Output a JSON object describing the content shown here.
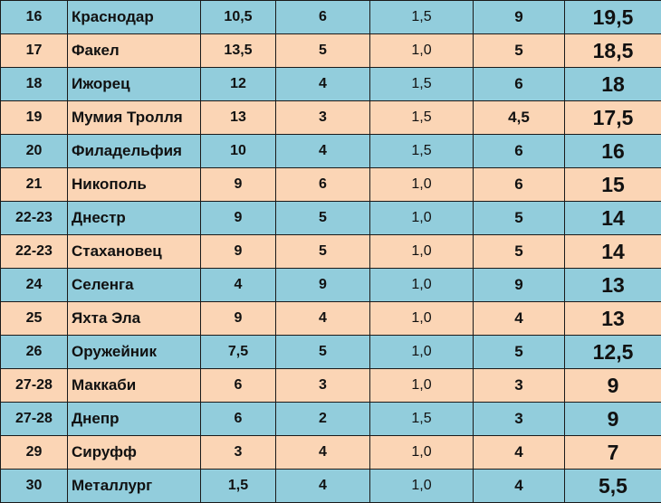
{
  "table": {
    "rows": [
      {
        "place": "16",
        "team": "Краснодар",
        "a": "10,5",
        "b": "6",
        "coef": "1,5",
        "bonus": "9",
        "total": "19,5"
      },
      {
        "place": "17",
        "team": "Факел",
        "a": "13,5",
        "b": "5",
        "coef": "1,0",
        "bonus": "5",
        "total": "18,5"
      },
      {
        "place": "18",
        "team": "Ижорец",
        "a": "12",
        "b": "4",
        "coef": "1,5",
        "bonus": "6",
        "total": "18"
      },
      {
        "place": "19",
        "team": "Мумия Тролля",
        "a": "13",
        "b": "3",
        "coef": "1,5",
        "bonus": "4,5",
        "total": "17,5"
      },
      {
        "place": "20",
        "team": "Филадельфия",
        "a": "10",
        "b": "4",
        "coef": "1,5",
        "bonus": "6",
        "total": "16"
      },
      {
        "place": "21",
        "team": "Никополь",
        "a": "9",
        "b": "6",
        "coef": "1,0",
        "bonus": "6",
        "total": "15"
      },
      {
        "place": "22-23",
        "team": "Днестр",
        "a": "9",
        "b": "5",
        "coef": "1,0",
        "bonus": "5",
        "total": "14"
      },
      {
        "place": "22-23",
        "team": "Стахановец",
        "a": "9",
        "b": "5",
        "coef": "1,0",
        "bonus": "5",
        "total": "14"
      },
      {
        "place": "24",
        "team": "Селенга",
        "a": "4",
        "b": "9",
        "coef": "1,0",
        "bonus": "9",
        "total": "13"
      },
      {
        "place": "25",
        "team": "Яхта Эла",
        "a": "9",
        "b": "4",
        "coef": "1,0",
        "bonus": "4",
        "total": "13"
      },
      {
        "place": "26",
        "team": "Оружейник",
        "a": "7,5",
        "b": "5",
        "coef": "1,0",
        "bonus": "5",
        "total": "12,5"
      },
      {
        "place": "27-28",
        "team": "Маккаби",
        "a": "6",
        "b": "3",
        "coef": "1,0",
        "bonus": "3",
        "total": "9"
      },
      {
        "place": "27-28",
        "team": "Днепр",
        "a": "6",
        "b": "2",
        "coef": "1,5",
        "bonus": "3",
        "total": "9"
      },
      {
        "place": "29",
        "team": "Сируфф",
        "a": "3",
        "b": "4",
        "coef": "1,0",
        "bonus": "4",
        "total": "7"
      },
      {
        "place": "30",
        "team": "Металлург",
        "a": "1,5",
        "b": "4",
        "coef": "1,0",
        "bonus": "4",
        "total": "5,5"
      }
    ]
  },
  "colors": {
    "row_blue": "#92cddc",
    "row_peach": "#fbd5b5",
    "border": "#1a1a1a"
  }
}
